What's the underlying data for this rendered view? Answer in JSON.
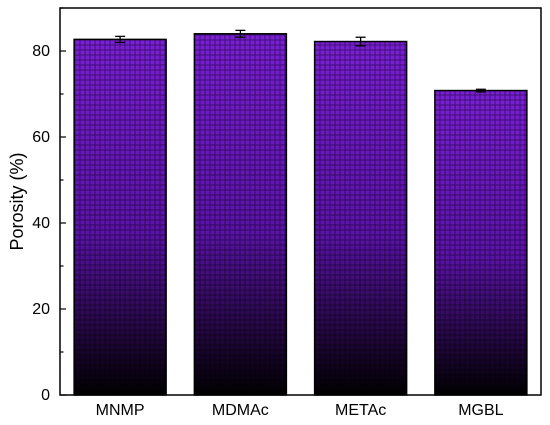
{
  "chart_data": {
    "type": "bar",
    "categories": [
      "MNMP",
      "MDMAc",
      "METAc",
      "MGBL"
    ],
    "values": [
      82.7,
      84.0,
      82.2,
      70.8
    ],
    "errors": [
      0.7,
      0.8,
      1.0,
      0.3
    ],
    "title": "",
    "xlabel": "",
    "ylabel": "Porosity (%)",
    "ylim": [
      0,
      90
    ],
    "yticks": [
      0,
      20,
      40,
      60,
      80
    ],
    "grid": false,
    "legend": "none",
    "colors": {
      "bar_top": "#7a1fd6",
      "bar_bottom": "#000000",
      "axis": "#000000"
    }
  }
}
